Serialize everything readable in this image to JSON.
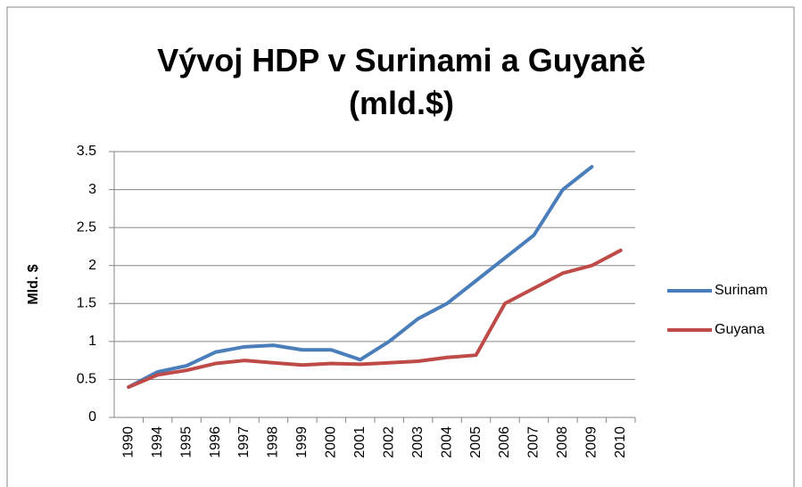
{
  "chart_data": {
    "type": "line",
    "title": "Vývoj HDP v Surinami a Guyaně (mld.$)",
    "y_label": "Mld. $",
    "categories": [
      "1990",
      "1994",
      "1995",
      "1996",
      "1997",
      "1998",
      "1999",
      "2000",
      "2001",
      "2002",
      "2003",
      "2004",
      "2005",
      "2006",
      "2007",
      "2008",
      "2009",
      "2010"
    ],
    "series": [
      {
        "name": "Surinam",
        "color": "#4a7ebb",
        "values": [
          0.4,
          0.6,
          0.68,
          0.86,
          0.93,
          0.95,
          0.89,
          0.89,
          0.76,
          1.0,
          1.3,
          1.5,
          1.8,
          2.1,
          2.4,
          3.0,
          3.3,
          null
        ]
      },
      {
        "name": "Guyana",
        "color": "#be4b48",
        "values": [
          0.4,
          0.56,
          0.62,
          0.71,
          0.75,
          0.72,
          0.69,
          0.71,
          0.7,
          0.72,
          0.74,
          0.79,
          0.82,
          1.5,
          1.7,
          1.9,
          2.0,
          2.2
        ]
      }
    ],
    "ylim": [
      0,
      3.5
    ],
    "yticks": [
      0,
      0.5,
      1,
      1.5,
      2,
      2.5,
      3,
      3.5
    ],
    "grid": true,
    "legend": "right"
  }
}
